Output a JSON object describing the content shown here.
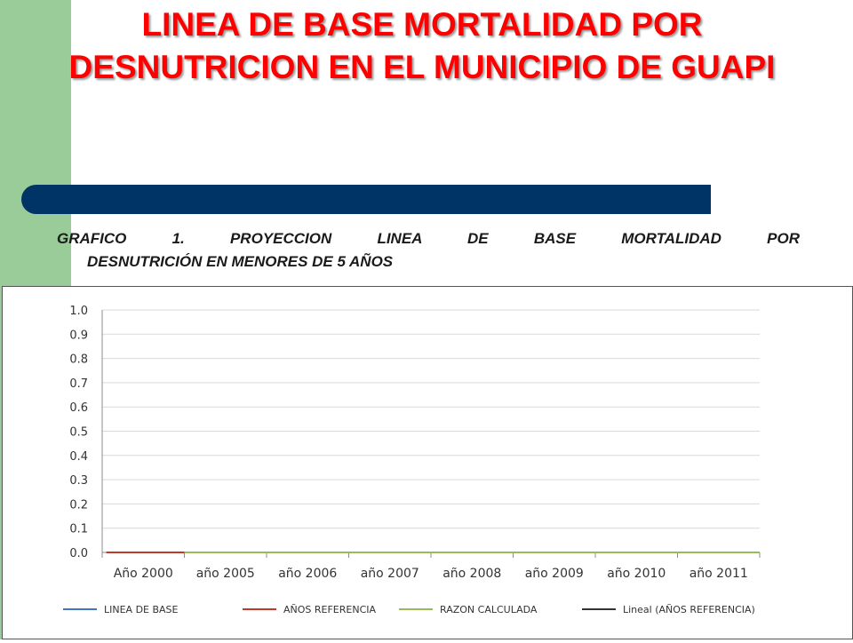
{
  "slide": {
    "title": "LINEA DE BASE MORTALIDAD POR DESNUTRICION EN EL MUNICIPIO DE GUAPI",
    "caption_line1": "GRAFICO 1. PROYECCION LINEA DE BASE MORTALIDAD POR",
    "caption_line2": "DESNUTRICIÓN EN MENORES DE 5 AÑOS",
    "colors": {
      "title": "#ff0000",
      "accent_bar": "#003366",
      "side_band": "#99cc99"
    }
  },
  "chart_data": {
    "type": "line",
    "title": "",
    "xlabel": "",
    "ylabel": "",
    "categories": [
      "Año 2000",
      "año 2005",
      "año 2006",
      "año 2007",
      "año 2008",
      "año 2009",
      "año 2010",
      "año 2011"
    ],
    "ylim": [
      0,
      1.0
    ],
    "yticks": [
      "0.0",
      "0.1",
      "0.2",
      "0.3",
      "0.4",
      "0.5",
      "0.6",
      "0.7",
      "0.8",
      "0.9",
      "1.0"
    ],
    "grid": true,
    "legend_position": "bottom",
    "series": [
      {
        "name": "LINEA DE BASE",
        "color": "#4472c4",
        "values": [
          null,
          null,
          null,
          null,
          null,
          null,
          null,
          null
        ]
      },
      {
        "name": "AÑOS REFERENCIA",
        "color": "#c0392b",
        "values": [
          0,
          0,
          null,
          null,
          null,
          null,
          null,
          null
        ]
      },
      {
        "name": "RAZON CALCULADA",
        "color": "#9bbb59",
        "values": [
          null,
          0,
          0,
          0,
          0,
          0,
          0,
          0
        ]
      },
      {
        "name": "Lineal (AÑOS REFERENCIA)",
        "color": "#333333",
        "values": [
          null,
          null,
          null,
          null,
          null,
          null,
          null,
          null
        ]
      }
    ]
  }
}
